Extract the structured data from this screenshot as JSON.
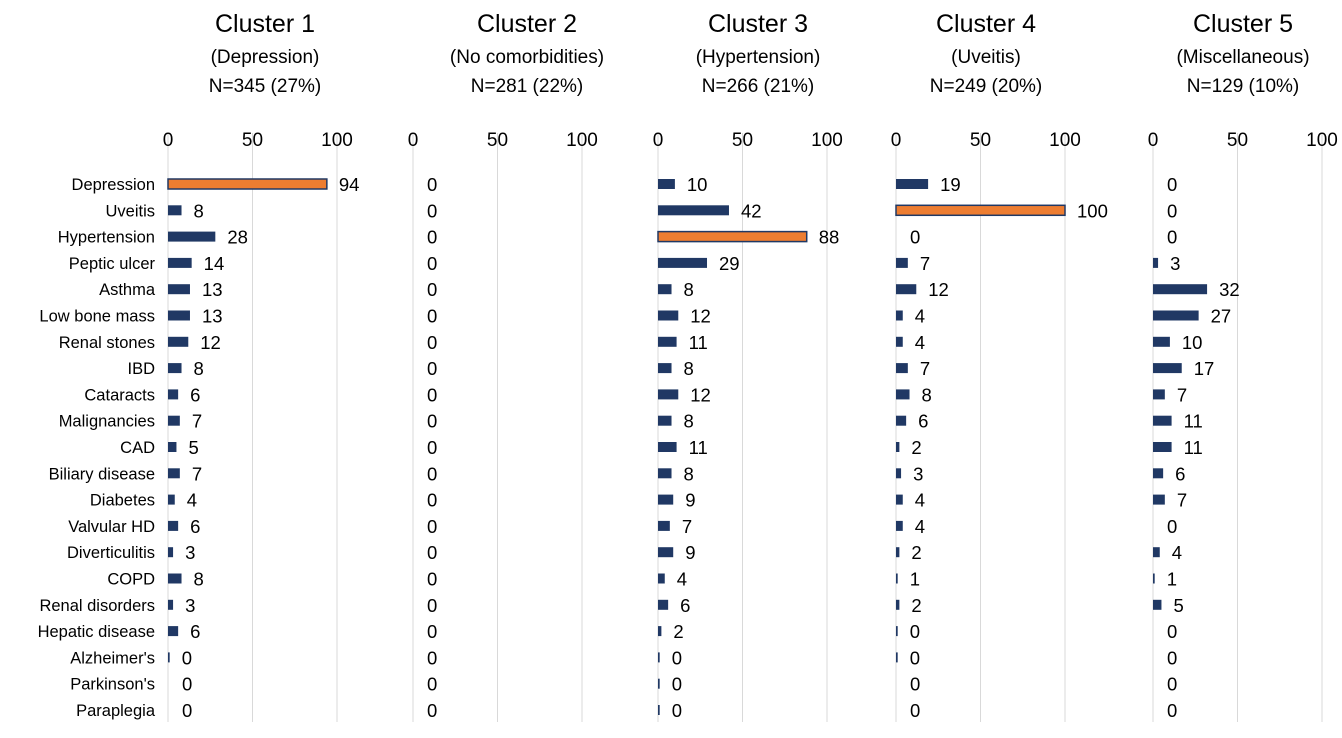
{
  "chart_data": {
    "type": "bar",
    "orientation": "horizontal",
    "categories": [
      "Depression",
      "Uveitis",
      "Hypertension",
      "Peptic ulcer",
      "Asthma",
      "Low bone mass",
      "Renal stones",
      "IBD",
      "Cataracts",
      "Malignancies",
      "CAD",
      "Biliary disease",
      "Diabetes",
      "Valvular HD",
      "Diverticulitis",
      "COPD",
      "Renal disorders",
      "Hepatic disease",
      "Alzheimer's",
      "Parkinson's",
      "Paraplegia"
    ],
    "xlim": [
      0,
      100
    ],
    "xticks": [
      "0",
      "50",
      "100"
    ],
    "grid": true,
    "bar_color": "#203864",
    "highlight_color": "#ED7D31",
    "highlight_border": "#203864",
    "panels": [
      {
        "title": "Cluster 1",
        "subtitle": "(Depression)",
        "n_label": "N=345 (27%)",
        "values": [
          94,
          8,
          28,
          14,
          13,
          13,
          12,
          8,
          6,
          7,
          5,
          7,
          4,
          6,
          3,
          8,
          3,
          6,
          0,
          0,
          0
        ],
        "bar_values": [
          94,
          8,
          28,
          14,
          13,
          13,
          12,
          8,
          6,
          7,
          5,
          7,
          4,
          6,
          3,
          8,
          3,
          6,
          1,
          0,
          0
        ],
        "highlight": [
          0
        ]
      },
      {
        "title": "Cluster 2",
        "subtitle": "(No comorbidities)",
        "n_label": "N=281 (22%)",
        "values": [
          0,
          0,
          0,
          0,
          0,
          0,
          0,
          0,
          0,
          0,
          0,
          0,
          0,
          0,
          0,
          0,
          0,
          0,
          0,
          0,
          0
        ],
        "bar_values": [
          0,
          0,
          0,
          0,
          0,
          0,
          0,
          0,
          0,
          0,
          0,
          0,
          0,
          0,
          0,
          0,
          0,
          0,
          0,
          0,
          0
        ],
        "highlight": []
      },
      {
        "title": "Cluster 3",
        "subtitle": "(Hypertension)",
        "n_label": "N=266 (21%)",
        "values": [
          10,
          42,
          88,
          29,
          8,
          12,
          11,
          8,
          12,
          8,
          11,
          8,
          9,
          7,
          9,
          4,
          6,
          2,
          0,
          0,
          0
        ],
        "bar_values": [
          10,
          42,
          88,
          29,
          8,
          12,
          11,
          8,
          12,
          8,
          11,
          8,
          9,
          7,
          9,
          4,
          6,
          2,
          1,
          1,
          1
        ],
        "highlight": [
          2
        ]
      },
      {
        "title": "Cluster 4",
        "subtitle": "(Uveitis)",
        "n_label": "N=249 (20%)",
        "values": [
          19,
          100,
          0,
          7,
          12,
          4,
          4,
          7,
          8,
          6,
          2,
          3,
          4,
          4,
          2,
          1,
          2,
          0,
          0,
          0,
          0
        ],
        "bar_values": [
          19,
          100,
          0,
          7,
          12,
          4,
          4,
          7,
          8,
          6,
          2,
          3,
          4,
          4,
          2,
          1,
          2,
          1,
          1,
          0,
          0
        ],
        "highlight": [
          1
        ]
      },
      {
        "title": "Cluster 5",
        "subtitle": "(Miscellaneous)",
        "n_label": "N=129 (10%)",
        "values": [
          0,
          0,
          0,
          3,
          32,
          27,
          10,
          17,
          7,
          11,
          11,
          6,
          7,
          0,
          4,
          1,
          5,
          0,
          0,
          0,
          0
        ],
        "bar_values": [
          0,
          0,
          0,
          3,
          32,
          27,
          10,
          17,
          7,
          11,
          11,
          6,
          7,
          0,
          4,
          1,
          5,
          0,
          0,
          0,
          0
        ],
        "highlight": []
      }
    ]
  }
}
